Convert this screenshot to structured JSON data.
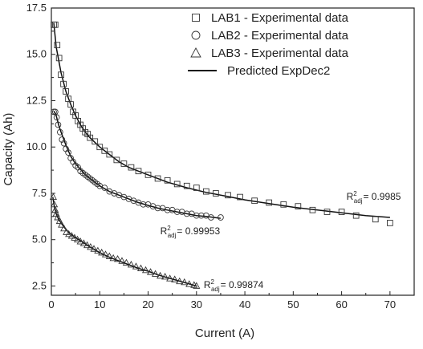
{
  "chart_data": {
    "type": "scatter",
    "xlabel": "Current (A)",
    "ylabel": "Capacity (Ah)",
    "xlim": [
      0,
      75
    ],
    "ylim": [
      2.0,
      17.5
    ],
    "x_ticks": [
      "0",
      "10",
      "20",
      "30",
      "40",
      "50",
      "60",
      "70"
    ],
    "y_ticks": [
      "2.5",
      "5.0",
      "7.5",
      "10.0",
      "12.5",
      "15.0",
      "17.5"
    ],
    "grid": false,
    "legend_position": "top-right",
    "legend": [
      {
        "label": "LAB1 - Experimental data",
        "marker": "square"
      },
      {
        "label": "LAB2 - Experimental data",
        "marker": "circle"
      },
      {
        "label": "LAB3 - Experimental data",
        "marker": "triangle"
      },
      {
        "label": "Predicted ExpDec2",
        "marker": "line"
      }
    ],
    "series": [
      {
        "name": "LAB1 - Experimental data",
        "marker": "square",
        "x": [
          0.5,
          0.8,
          1.2,
          1.6,
          2.0,
          2.5,
          3.0,
          3.5,
          4.0,
          4.5,
          5.0,
          5.5,
          6.0,
          6.5,
          7.0,
          7.5,
          8.0,
          9.0,
          10.0,
          11.0,
          12.0,
          13.5,
          15.0,
          16.5,
          18.0,
          20.0,
          22.0,
          24.0,
          26.0,
          28.0,
          30.0,
          32.0,
          34.0,
          36.5,
          39.0,
          42.0,
          45.0,
          48.0,
          51.0,
          54.0,
          57.0,
          60.0,
          63.0,
          67.0,
          70.0
        ],
        "y": [
          16.6,
          16.6,
          15.5,
          14.8,
          13.9,
          13.4,
          13.0,
          12.6,
          12.3,
          11.9,
          11.7,
          11.4,
          11.2,
          11.0,
          10.8,
          10.7,
          10.5,
          10.3,
          10.0,
          9.8,
          9.6,
          9.3,
          9.1,
          8.9,
          8.7,
          8.5,
          8.3,
          8.2,
          8.0,
          7.9,
          7.8,
          7.6,
          7.5,
          7.4,
          7.3,
          7.1,
          7.0,
          6.9,
          6.8,
          6.6,
          6.5,
          6.5,
          6.3,
          6.1,
          5.9
        ]
      },
      {
        "name": "LAB2 - Experimental data",
        "marker": "circle",
        "x": [
          0.5,
          0.8,
          1.1,
          1.4,
          1.8,
          2.2,
          2.6,
          3.0,
          3.5,
          4.0,
          4.5,
          5.0,
          5.5,
          6.0,
          6.5,
          7.0,
          7.5,
          8.0,
          8.5,
          9.0,
          9.5,
          10.0,
          11.0,
          12.0,
          13.0,
          14.0,
          15.0,
          16.0,
          17.0,
          18.0,
          19.0,
          20.0,
          21.0,
          22.0,
          23.0,
          24.0,
          25.0,
          26.0,
          27.0,
          28.0,
          29.0,
          30.0,
          31.0,
          32.0,
          33.0,
          35.0
        ],
        "y": [
          11.9,
          11.9,
          11.6,
          11.2,
          10.8,
          10.4,
          10.2,
          9.9,
          9.7,
          9.4,
          9.2,
          9.0,
          8.9,
          8.7,
          8.6,
          8.5,
          8.4,
          8.3,
          8.2,
          8.1,
          8.0,
          7.9,
          7.8,
          7.6,
          7.5,
          7.4,
          7.3,
          7.2,
          7.1,
          7.0,
          6.9,
          6.9,
          6.8,
          6.7,
          6.7,
          6.6,
          6.6,
          6.5,
          6.5,
          6.4,
          6.4,
          6.3,
          6.3,
          6.3,
          6.2,
          6.2
        ]
      },
      {
        "name": "LAB3 - Experimental data",
        "marker": "triangle",
        "x": [
          0.4,
          0.6,
          0.8,
          1.0,
          1.3,
          1.7,
          2.1,
          2.6,
          3.1,
          3.6,
          4.2,
          4.8,
          5.4,
          6.0,
          6.7,
          7.4,
          8.1,
          8.8,
          9.6,
          10.4,
          11.2,
          12.0,
          12.8,
          13.7,
          14.6,
          15.5,
          16.5,
          17.5,
          18.5,
          19.5,
          20.5,
          21.5,
          22.5,
          23.5,
          24.5,
          25.5,
          26.5,
          27.5,
          28.5,
          29.5,
          30.0
        ],
        "y": [
          7.3,
          6.9,
          6.6,
          6.4,
          6.2,
          6.0,
          5.8,
          5.6,
          5.4,
          5.3,
          5.2,
          5.1,
          5.0,
          4.9,
          4.8,
          4.7,
          4.6,
          4.5,
          4.4,
          4.3,
          4.2,
          4.1,
          4.0,
          3.95,
          3.85,
          3.75,
          3.65,
          3.55,
          3.45,
          3.35,
          3.25,
          3.15,
          3.05,
          3.0,
          2.9,
          2.85,
          2.75,
          2.7,
          2.6,
          2.55,
          2.5
        ]
      }
    ],
    "fits": [
      {
        "label": "Predicted ExpDec2",
        "x": [
          0.5,
          1,
          2,
          3,
          4,
          5,
          6,
          7,
          8,
          10,
          12,
          14,
          16,
          18,
          20,
          24,
          28,
          32,
          36,
          40,
          45,
          50,
          55,
          60,
          65,
          70
        ],
        "y": [
          16.7,
          15.4,
          14.0,
          13.0,
          12.3,
          11.7,
          11.2,
          10.8,
          10.5,
          10.0,
          9.6,
          9.2,
          8.9,
          8.7,
          8.5,
          8.1,
          7.8,
          7.55,
          7.35,
          7.15,
          6.95,
          6.75,
          6.6,
          6.45,
          6.3,
          6.2
        ]
      },
      {
        "x": [
          0.5,
          1,
          1.5,
          2,
          3,
          4,
          5,
          6,
          7,
          8,
          10,
          12,
          14,
          16,
          18,
          20,
          22,
          24,
          26,
          28,
          30,
          32,
          35
        ],
        "y": [
          11.95,
          11.7,
          11.2,
          10.8,
          10.1,
          9.5,
          9.1,
          8.8,
          8.5,
          8.3,
          7.9,
          7.6,
          7.4,
          7.2,
          7.0,
          6.85,
          6.7,
          6.6,
          6.5,
          6.4,
          6.3,
          6.25,
          6.15
        ]
      },
      {
        "x": [
          0.3,
          0.6,
          1,
          1.5,
          2,
          3,
          4,
          5,
          6,
          8,
          10,
          12,
          14,
          16,
          18,
          20,
          22,
          24,
          26,
          28,
          30
        ],
        "y": [
          7.3,
          6.8,
          6.4,
          6.1,
          5.9,
          5.55,
          5.3,
          5.1,
          4.95,
          4.6,
          4.3,
          4.05,
          3.85,
          3.65,
          3.45,
          3.3,
          3.1,
          2.95,
          2.8,
          2.65,
          2.5
        ]
      }
    ],
    "annotations": [
      {
        "series": "LAB1 - Experimental data",
        "text_main": "R",
        "sup": "2",
        "sub": "adj",
        "value": "= 0.9985",
        "at": [
          61,
          7.15
        ]
      },
      {
        "series": "LAB2 - Experimental data",
        "text_main": "R",
        "sup": "2",
        "sub": "adj",
        "value": "= 0.99953",
        "at": [
          22.5,
          5.3
        ]
      },
      {
        "series": "LAB3 - Experimental data",
        "text_main": "R",
        "sup": "2",
        "sub": "adj",
        "value": "= 0.99874",
        "at": [
          31.5,
          2.4
        ]
      }
    ]
  }
}
